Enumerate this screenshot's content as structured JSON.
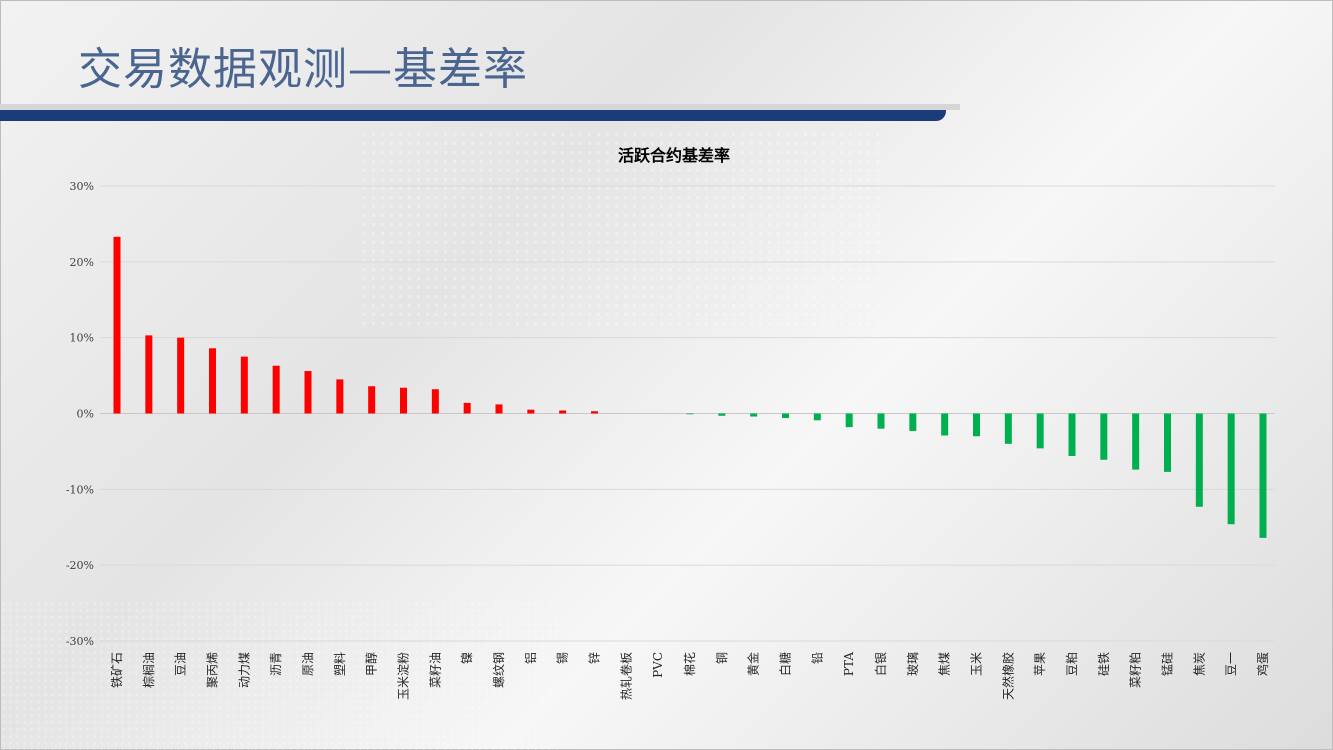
{
  "slide": {
    "title": "交易数据观测—基差率"
  },
  "chart_data": {
    "type": "bar",
    "title": "活跃合约基差率",
    "xlabel": "",
    "ylabel": "",
    "ylim": [
      -30,
      30
    ],
    "yticks": [
      30,
      20,
      10,
      0,
      -10,
      -20,
      -30
    ],
    "ytick_labels": [
      "30%",
      "20%",
      "10%",
      "0%",
      "-10%",
      "-20%",
      "-30%"
    ],
    "grid": true,
    "positive_color": "#ff0000",
    "negative_color": "#00b050",
    "categories": [
      "铁矿石",
      "棕榈油",
      "豆油",
      "聚丙烯",
      "动力煤",
      "沥青",
      "原油",
      "塑料",
      "甲醇",
      "玉米淀粉",
      "菜籽油",
      "镍",
      "螺纹钢",
      "铝",
      "锡",
      "锌",
      "热轧卷板",
      "PVC",
      "棉花",
      "铜",
      "黄金",
      "白糖",
      "铅",
      "PTA",
      "白银",
      "玻璃",
      "焦煤",
      "玉米",
      "天然橡胶",
      "苹果",
      "豆粕",
      "硅铁",
      "菜籽粕",
      "锰硅",
      "焦炭",
      "豆一",
      "鸡蛋"
    ],
    "values": [
      23.3,
      10.3,
      10.0,
      8.6,
      7.5,
      6.3,
      5.6,
      4.5,
      3.6,
      3.4,
      3.2,
      1.4,
      1.2,
      0.5,
      0.4,
      0.3,
      0,
      0,
      -0.1,
      -0.3,
      -0.4,
      -0.6,
      -0.9,
      -1.8,
      -2.0,
      -2.3,
      -2.9,
      -3.0,
      -4.0,
      -4.6,
      -5.6,
      -6.1,
      -7.4,
      -7.7,
      -12.3,
      -14.6,
      -16.4
    ]
  }
}
